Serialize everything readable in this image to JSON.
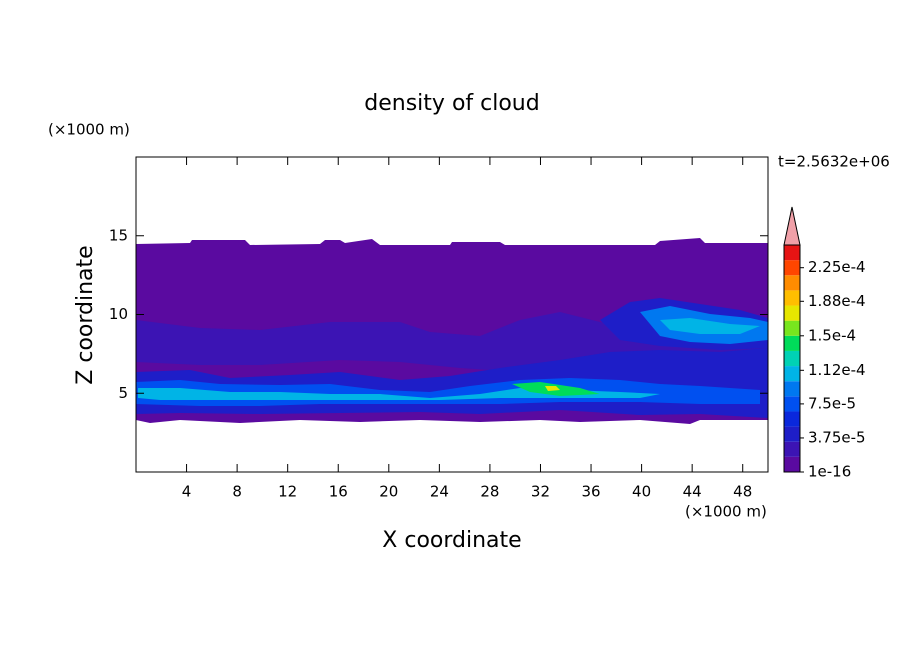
{
  "chart_data": {
    "type": "contour",
    "title": "density of cloud",
    "xlabel": "X coordinate",
    "ylabel": "Z coordinate",
    "x_unit": "(×1000 m)",
    "y_unit": "(×1000 m)",
    "time_label": "t=2.5632e+06",
    "xlim": [
      0,
      50
    ],
    "xticks": [
      4,
      8,
      12,
      16,
      20,
      24,
      28,
      32,
      36,
      40,
      44,
      48
    ],
    "ylim": [
      0,
      20
    ],
    "yticks": [
      5,
      10,
      15
    ],
    "colorbar": {
      "clim": [
        1e-16,
        0.00025
      ],
      "colors": [
        "#5a0aa0",
        "#3c14b4",
        "#1e1ec8",
        "#0a28dc",
        "#0050f0",
        "#0078f0",
        "#00b4e6",
        "#00d2b4",
        "#00dc5a",
        "#78e61e",
        "#e6e600",
        "#ffbe00",
        "#ff8c00",
        "#ff4600",
        "#e61414"
      ],
      "extend_color": "#f0a0a8",
      "ticks": [
        {
          "value": 1e-16,
          "label": "1e-16"
        },
        {
          "value": 3.75e-05,
          "label": "3.75e-5"
        },
        {
          "value": 7.5e-05,
          "label": "7.5e-5"
        },
        {
          "value": 0.000112,
          "label": "1.12e-4"
        },
        {
          "value": 0.00015,
          "label": "1.5e-4"
        },
        {
          "value": 0.000188,
          "label": "1.88e-4"
        },
        {
          "value": 0.000225,
          "label": "2.25e-4"
        }
      ]
    }
  }
}
